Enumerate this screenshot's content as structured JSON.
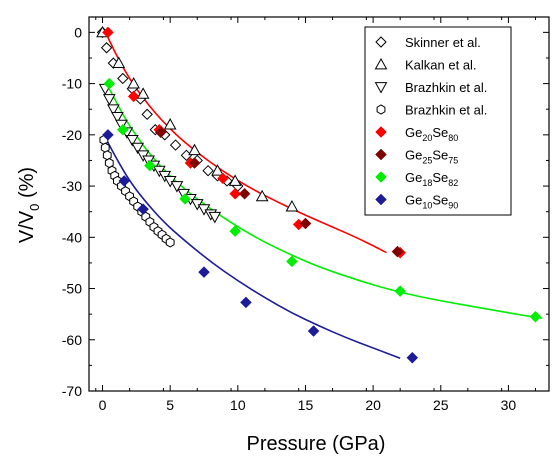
{
  "chart_data": {
    "type": "scatter",
    "xlabel": "Pressure (GPa)",
    "ylabel_main": "V/V",
    "ylabel_sub": "0",
    "ylabel_unit": " (%)",
    "xlim": [
      -1,
      33
    ],
    "ylim": [
      -70,
      3
    ],
    "xticks": [
      0,
      5,
      10,
      15,
      20,
      25,
      30
    ],
    "yticks": [
      0,
      -10,
      -20,
      -30,
      -40,
      -50,
      -60,
      -70
    ],
    "grid": false,
    "legend_position": "top-right",
    "series": [
      {
        "name": "Skinner et al.",
        "marker": "diamond-open",
        "color": "#000000",
        "points": [
          [
            0,
            0
          ],
          [
            0.3,
            -3
          ],
          [
            0.8,
            -6
          ],
          [
            1.5,
            -9
          ],
          [
            2.2,
            -11
          ],
          [
            2.8,
            -13
          ],
          [
            3.3,
            -16
          ],
          [
            3.9,
            -19
          ],
          [
            4.6,
            -20
          ],
          [
            5.4,
            -22
          ],
          [
            6.2,
            -24
          ],
          [
            7,
            -25
          ],
          [
            7.8,
            -27
          ],
          [
            8.5,
            -28
          ],
          [
            9.2,
            -29
          ],
          [
            10,
            -30
          ]
        ]
      },
      {
        "name": "Kalkan et al.",
        "marker": "triangle-up-open",
        "color": "#000000",
        "points": [
          [
            0,
            0
          ],
          [
            1.2,
            -6
          ],
          [
            2.3,
            -10
          ],
          [
            3,
            -12
          ],
          [
            5,
            -18
          ],
          [
            6.8,
            -23
          ],
          [
            8.5,
            -27
          ],
          [
            9.8,
            -29
          ],
          [
            11.8,
            -32
          ],
          [
            14,
            -34
          ]
        ]
      },
      {
        "name": "Brazhkin et al.",
        "marker": "triangle-down-open",
        "color": "#000000",
        "points": [
          [
            0.2,
            -11
          ],
          [
            0.5,
            -13
          ],
          [
            0.8,
            -15
          ],
          [
            1.1,
            -16.5
          ],
          [
            1.4,
            -18
          ],
          [
            1.8,
            -19.5
          ],
          [
            2.2,
            -21
          ],
          [
            2.6,
            -22.5
          ],
          [
            3,
            -24
          ],
          [
            3.4,
            -25
          ],
          [
            3.8,
            -26
          ],
          [
            4.2,
            -27
          ],
          [
            4.6,
            -28
          ],
          [
            5,
            -29
          ],
          [
            5.5,
            -30
          ],
          [
            6,
            -31.5
          ],
          [
            6.5,
            -32.5
          ],
          [
            7,
            -33.5
          ],
          [
            7.5,
            -34.5
          ],
          [
            8,
            -35.5
          ],
          [
            8.3,
            -36
          ]
        ]
      },
      {
        "name": "Brazhkin et al.",
        "marker": "hexagon-open",
        "color": "#000000",
        "points": [
          [
            0.1,
            -21
          ],
          [
            0.2,
            -22.5
          ],
          [
            0.35,
            -24
          ],
          [
            0.5,
            -25.5
          ],
          [
            0.7,
            -27
          ],
          [
            0.9,
            -28
          ],
          [
            1.1,
            -29
          ],
          [
            1.4,
            -30
          ],
          [
            1.7,
            -31
          ],
          [
            2,
            -32
          ],
          [
            2.3,
            -33
          ],
          [
            2.6,
            -34
          ],
          [
            2.9,
            -35
          ],
          [
            3.2,
            -36
          ],
          [
            3.5,
            -37
          ],
          [
            3.8,
            -38
          ],
          [
            4.1,
            -38.8
          ],
          [
            4.4,
            -39.5
          ],
          [
            4.7,
            -40.3
          ],
          [
            5,
            -41
          ]
        ]
      },
      {
        "name": "Ge20Se80",
        "label_base1": "Ge",
        "label_sub1": "20",
        "label_base2": "Se",
        "label_sub2": "80",
        "marker": "diamond-filled",
        "color": "#ff0000",
        "points": [
          [
            0.4,
            0
          ],
          [
            2.3,
            -12.5
          ],
          [
            4.2,
            -19
          ],
          [
            6.5,
            -25.5
          ],
          [
            8.9,
            -28.5
          ],
          [
            9.8,
            -31.5
          ],
          [
            14.5,
            -37.5
          ],
          [
            22,
            -43
          ]
        ],
        "fit": [
          [
            0.4,
            -1
          ],
          [
            1.5,
            -7
          ],
          [
            3,
            -13
          ],
          [
            5,
            -19
          ],
          [
            7,
            -23.5
          ],
          [
            9,
            -27.3
          ],
          [
            11,
            -30.5
          ],
          [
            13,
            -33.2
          ],
          [
            15,
            -35.7
          ],
          [
            17,
            -38
          ],
          [
            19,
            -40.3
          ],
          [
            21,
            -43
          ]
        ]
      },
      {
        "name": "Ge25Se75",
        "label_base1": "Ge",
        "label_sub1": "25",
        "label_base2": "Se",
        "label_sub2": "75",
        "marker": "diamond-filled",
        "color": "#800000",
        "points": [
          [
            4.3,
            -19.5
          ],
          [
            6.8,
            -25.5
          ],
          [
            10.5,
            -31.5
          ],
          [
            15,
            -37.3
          ],
          [
            21.8,
            -42.8
          ]
        ]
      },
      {
        "name": "Ge18Se82",
        "label_base1": "Ge",
        "label_sub1": "18",
        "label_base2": "Se",
        "label_sub2": "82",
        "marker": "diamond-filled",
        "color": "#00ee00",
        "points": [
          [
            0.5,
            -10
          ],
          [
            1.5,
            -19
          ],
          [
            3.5,
            -26
          ],
          [
            6.1,
            -32.5
          ],
          [
            9.8,
            -38.8
          ],
          [
            14,
            -44.7
          ],
          [
            22,
            -50.5
          ],
          [
            32,
            -55.5
          ]
        ],
        "fit": [
          [
            0.5,
            -11
          ],
          [
            2,
            -18.5
          ],
          [
            4,
            -25.5
          ],
          [
            6,
            -30.5
          ],
          [
            8,
            -34.5
          ],
          [
            10,
            -38
          ],
          [
            12,
            -41
          ],
          [
            14,
            -43.5
          ],
          [
            16,
            -45.8
          ],
          [
            19,
            -48.5
          ],
          [
            22,
            -50.8
          ],
          [
            25,
            -52.4
          ],
          [
            28,
            -53.8
          ],
          [
            31,
            -55.2
          ],
          [
            32.5,
            -55.8
          ]
        ]
      },
      {
        "name": "Ge10Se90",
        "label_base1": "Ge",
        "label_sub1": "10",
        "label_base2": "Se",
        "label_sub2": "90",
        "marker": "diamond-filled",
        "color": "#1c1c99",
        "points": [
          [
            0.4,
            -20
          ],
          [
            1.6,
            -29
          ],
          [
            3,
            -34.5
          ],
          [
            7.5,
            -46.8
          ],
          [
            10.6,
            -52.7
          ],
          [
            15.6,
            -58.3
          ],
          [
            22.9,
            -63.5
          ]
        ],
        "fit": [
          [
            0.3,
            -21
          ],
          [
            1,
            -24.5
          ],
          [
            2,
            -29
          ],
          [
            3,
            -32.5
          ],
          [
            4.5,
            -37
          ],
          [
            6,
            -40.5
          ],
          [
            8,
            -44.8
          ],
          [
            10,
            -48.5
          ],
          [
            12,
            -51.8
          ],
          [
            14,
            -54.8
          ],
          [
            16,
            -57.3
          ],
          [
            18,
            -59.6
          ],
          [
            20,
            -61.6
          ],
          [
            22,
            -63.6
          ]
        ]
      }
    ]
  }
}
